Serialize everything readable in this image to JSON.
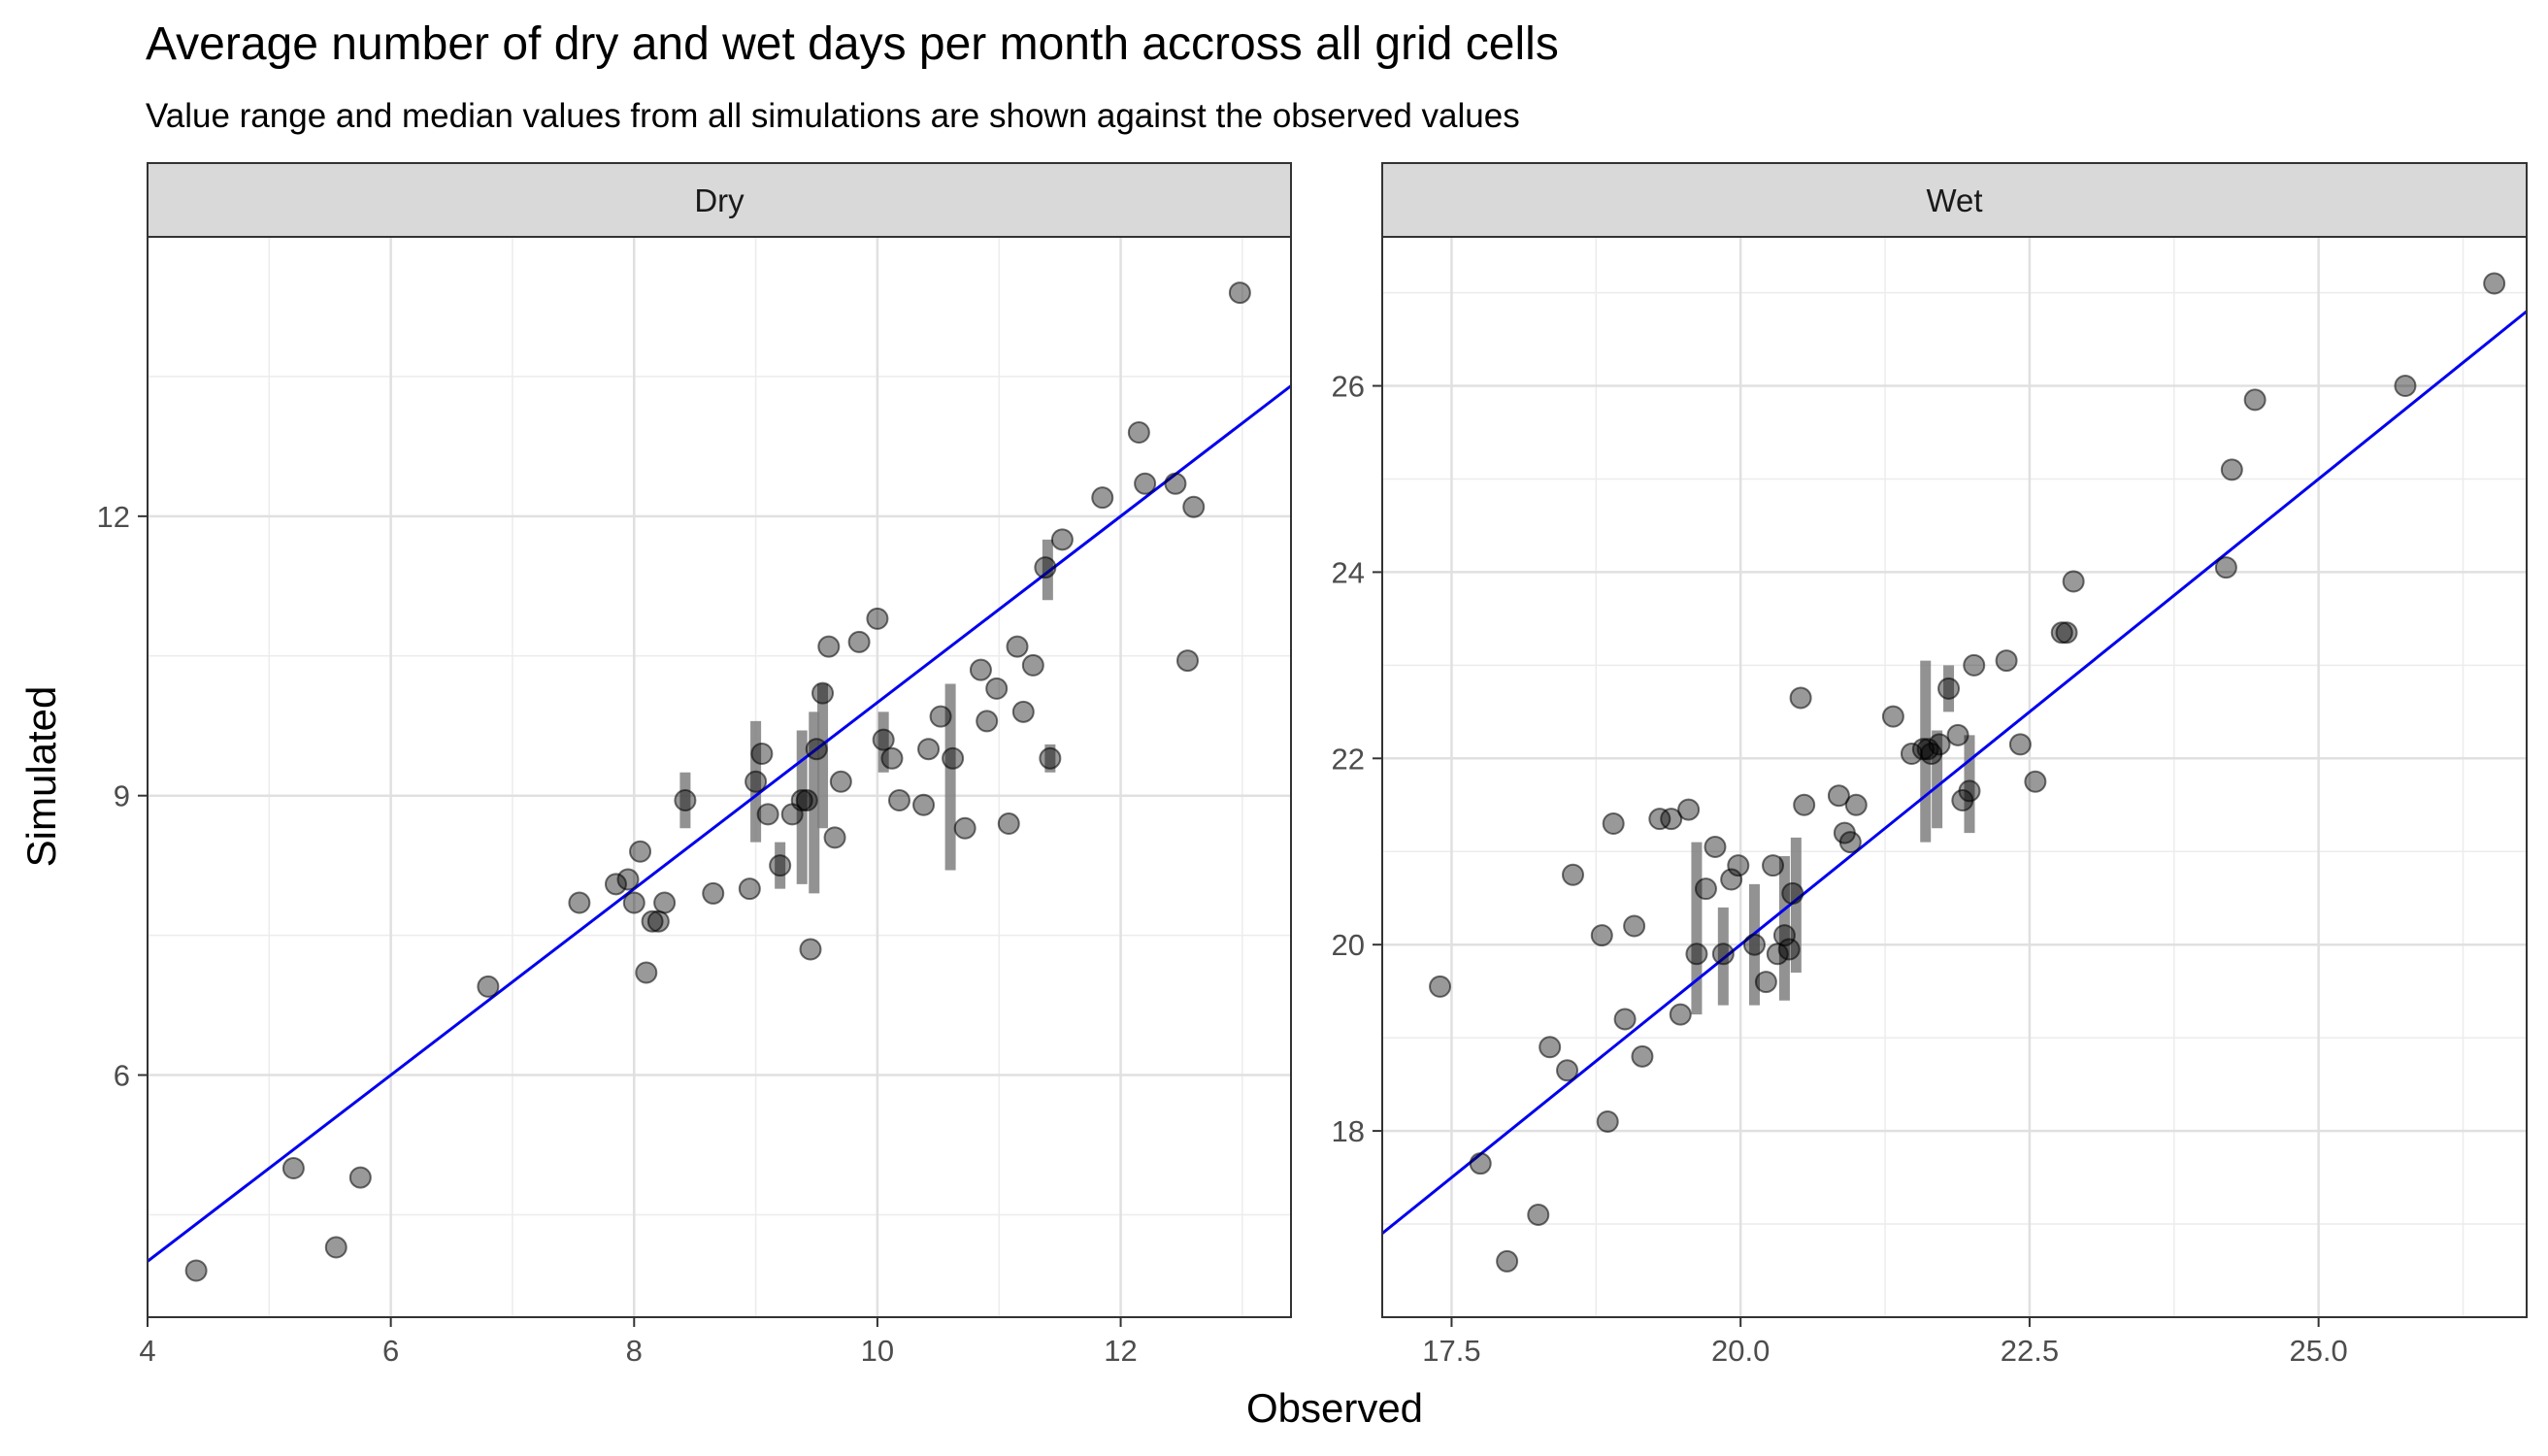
{
  "chart_data": {
    "type": "scatter",
    "title": "Average number of dry and wet days per month accross all grid cells",
    "subtitle": "Value range and median values from all simulations are shown against the observed values",
    "xlabel": "Observed",
    "ylabel": "Simulated",
    "grid": true,
    "reference_line": {
      "slope": 1,
      "intercept": 0,
      "color": "#0000ee"
    },
    "point_color": "#000000",
    "range_bar_color": "#7f7f7f",
    "panels": [
      {
        "strip": "Dry",
        "xlim": [
          4,
          13.4
        ],
        "ylim": [
          3.4,
          15.0
        ],
        "xticks": [
          4,
          6,
          8,
          10,
          12
        ],
        "xtick_labels": [
          "4",
          "6",
          "8",
          "10",
          "12"
        ],
        "yticks": [
          6,
          9,
          12
        ],
        "ytick_labels": [
          "6",
          "9",
          "12"
        ],
        "points": [
          [
            4.4,
            3.9
          ],
          [
            5.2,
            5.0
          ],
          [
            5.55,
            4.15
          ],
          [
            5.75,
            4.9
          ],
          [
            6.8,
            6.95
          ],
          [
            7.55,
            7.85
          ],
          [
            7.85,
            8.05
          ],
          [
            7.95,
            8.1
          ],
          [
            8.05,
            8.4
          ],
          [
            8.0,
            7.85
          ],
          [
            8.1,
            7.1
          ],
          [
            8.15,
            7.65
          ],
          [
            8.2,
            7.65
          ],
          [
            8.25,
            7.85
          ],
          [
            8.42,
            8.95
          ],
          [
            8.65,
            7.95
          ],
          [
            8.95,
            8.0
          ],
          [
            9.0,
            9.15
          ],
          [
            9.05,
            9.45
          ],
          [
            9.1,
            8.8
          ],
          [
            9.2,
            8.25
          ],
          [
            9.3,
            8.8
          ],
          [
            9.38,
            8.95
          ],
          [
            9.42,
            8.95
          ],
          [
            9.45,
            7.35
          ],
          [
            9.5,
            9.5
          ],
          [
            9.55,
            10.1
          ],
          [
            9.6,
            10.6
          ],
          [
            9.65,
            8.55
          ],
          [
            9.7,
            9.15
          ],
          [
            9.85,
            10.65
          ],
          [
            10.0,
            10.9
          ],
          [
            10.05,
            9.6
          ],
          [
            10.12,
            9.4
          ],
          [
            10.18,
            8.95
          ],
          [
            10.38,
            8.9
          ],
          [
            10.42,
            9.5
          ],
          [
            10.52,
            9.85
          ],
          [
            10.62,
            9.4
          ],
          [
            10.72,
            8.65
          ],
          [
            10.85,
            10.35
          ],
          [
            10.9,
            9.8
          ],
          [
            10.98,
            10.15
          ],
          [
            11.08,
            8.7
          ],
          [
            11.15,
            10.6
          ],
          [
            11.2,
            9.9
          ],
          [
            11.28,
            10.4
          ],
          [
            11.38,
            11.45
          ],
          [
            11.42,
            9.4
          ],
          [
            11.52,
            11.75
          ],
          [
            11.85,
            12.2
          ],
          [
            12.15,
            12.9
          ],
          [
            12.2,
            12.35
          ],
          [
            12.45,
            12.35
          ],
          [
            12.55,
            10.45
          ],
          [
            12.6,
            12.1
          ],
          [
            12.98,
            14.4
          ]
        ],
        "ranges": [
          [
            8.42,
            8.65,
            9.25
          ],
          [
            9.0,
            8.5,
            9.8
          ],
          [
            9.2,
            8.0,
            8.5
          ],
          [
            9.38,
            8.05,
            9.7
          ],
          [
            9.48,
            7.95,
            9.9
          ],
          [
            9.55,
            8.65,
            10.2
          ],
          [
            10.05,
            9.25,
            9.9
          ],
          [
            10.6,
            8.2,
            10.2
          ],
          [
            11.4,
            11.1,
            11.75
          ],
          [
            11.42,
            9.25,
            9.55
          ]
        ]
      },
      {
        "strip": "Wet",
        "xlim": [
          16.9,
          26.8
        ],
        "ylim": [
          16.0,
          27.6
        ],
        "xticks": [
          17.5,
          20.0,
          22.5,
          25.0
        ],
        "xtick_labels": [
          "17.5",
          "20.0",
          "22.5",
          "25.0"
        ],
        "yticks": [
          18,
          20,
          22,
          24,
          26
        ],
        "ytick_labels": [
          "18",
          "20",
          "22",
          "24",
          "26"
        ],
        "points": [
          [
            17.4,
            19.55
          ],
          [
            17.75,
            17.65
          ],
          [
            17.98,
            16.6
          ],
          [
            18.25,
            17.1
          ],
          [
            18.35,
            18.9
          ],
          [
            18.5,
            18.65
          ],
          [
            18.55,
            20.75
          ],
          [
            18.8,
            20.1
          ],
          [
            18.85,
            18.1
          ],
          [
            18.9,
            21.3
          ],
          [
            19.0,
            19.2
          ],
          [
            19.08,
            20.2
          ],
          [
            19.15,
            18.8
          ],
          [
            19.3,
            21.35
          ],
          [
            19.4,
            21.35
          ],
          [
            19.48,
            19.25
          ],
          [
            19.55,
            21.45
          ],
          [
            19.62,
            19.9
          ],
          [
            19.7,
            20.6
          ],
          [
            19.78,
            21.05
          ],
          [
            19.85,
            19.9
          ],
          [
            19.92,
            20.7
          ],
          [
            19.98,
            20.85
          ],
          [
            20.12,
            20.0
          ],
          [
            20.22,
            19.6
          ],
          [
            20.28,
            20.85
          ],
          [
            20.32,
            19.9
          ],
          [
            20.38,
            20.1
          ],
          [
            20.42,
            19.95
          ],
          [
            20.45,
            20.55
          ],
          [
            20.52,
            22.65
          ],
          [
            20.55,
            21.5
          ],
          [
            20.85,
            21.6
          ],
          [
            20.9,
            21.2
          ],
          [
            20.95,
            21.1
          ],
          [
            21.0,
            21.5
          ],
          [
            21.32,
            22.45
          ],
          [
            21.48,
            22.05
          ],
          [
            21.58,
            22.1
          ],
          [
            21.62,
            22.1
          ],
          [
            21.65,
            22.05
          ],
          [
            21.72,
            22.15
          ],
          [
            21.8,
            22.75
          ],
          [
            21.88,
            22.25
          ],
          [
            21.92,
            21.55
          ],
          [
            21.98,
            21.65
          ],
          [
            22.02,
            23.0
          ],
          [
            22.3,
            23.05
          ],
          [
            22.42,
            22.15
          ],
          [
            22.55,
            21.75
          ],
          [
            22.78,
            23.35
          ],
          [
            22.82,
            23.35
          ],
          [
            22.88,
            23.9
          ],
          [
            24.2,
            24.05
          ],
          [
            24.25,
            25.1
          ],
          [
            24.45,
            25.85
          ],
          [
            25.75,
            26.0
          ],
          [
            26.52,
            27.1
          ]
        ],
        "ranges": [
          [
            19.62,
            19.25,
            21.1
          ],
          [
            19.85,
            19.35,
            20.4
          ],
          [
            20.12,
            19.35,
            20.65
          ],
          [
            20.38,
            19.4,
            20.95
          ],
          [
            20.48,
            19.7,
            21.15
          ],
          [
            21.6,
            21.1,
            23.05
          ],
          [
            21.7,
            21.25,
            22.3
          ],
          [
            21.8,
            22.5,
            23.0
          ],
          [
            21.98,
            21.2,
            22.25
          ]
        ]
      }
    ]
  }
}
